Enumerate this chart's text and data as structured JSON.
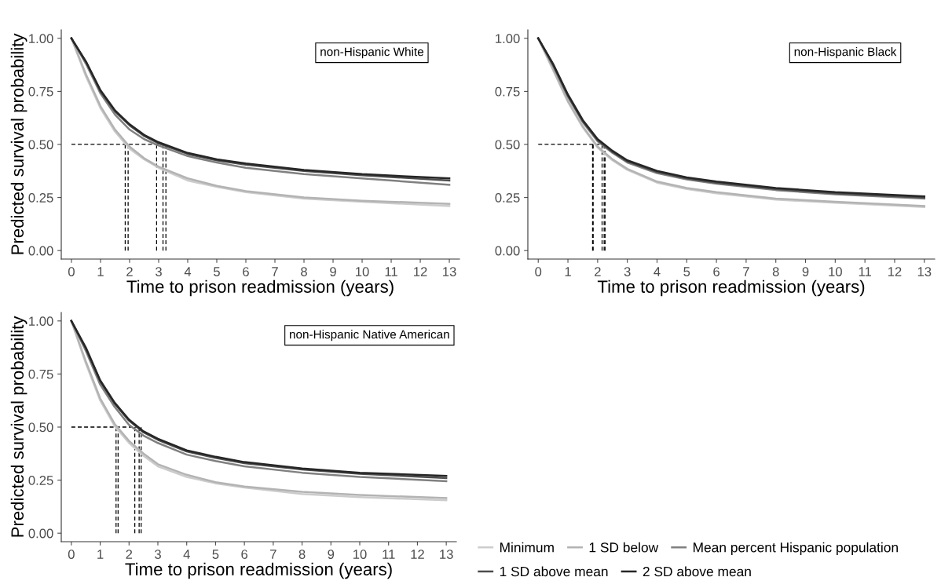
{
  "chart_data": [
    {
      "type": "line",
      "annotations": [
        "non-Hispanic White"
      ],
      "xlabel": "Time to prison readmission (years)",
      "ylabel": "Predicted survival probability",
      "x": [
        0,
        0.5,
        1,
        1.5,
        2,
        2.5,
        3,
        4,
        5,
        6,
        8,
        10,
        13
      ],
      "series": [
        {
          "name": "Minimum",
          "color": "#cccccc",
          "values": [
            1,
            0.82,
            0.67,
            0.56,
            0.48,
            0.43,
            0.39,
            0.33,
            0.3,
            0.275,
            0.245,
            0.23,
            0.21
          ]
        },
        {
          "name": "1 SD below",
          "color": "#b3b3b3",
          "values": [
            1,
            0.83,
            0.68,
            0.57,
            0.49,
            0.435,
            0.395,
            0.34,
            0.305,
            0.28,
            0.25,
            0.235,
            0.22
          ]
        },
        {
          "name": "Mean percent Hispanic population",
          "color": "#808080",
          "values": [
            1,
            0.88,
            0.74,
            0.64,
            0.57,
            0.525,
            0.495,
            0.445,
            0.415,
            0.39,
            0.36,
            0.34,
            0.31
          ]
        },
        {
          "name": "1 SD above mean",
          "color": "#4d4d4d",
          "values": [
            1,
            0.89,
            0.75,
            0.655,
            0.59,
            0.54,
            0.505,
            0.455,
            0.425,
            0.405,
            0.375,
            0.355,
            0.33
          ]
        },
        {
          "name": "2 SD above mean",
          "color": "#262626",
          "values": [
            1,
            0.89,
            0.755,
            0.66,
            0.595,
            0.545,
            0.51,
            0.46,
            0.43,
            0.41,
            0.38,
            0.36,
            0.34
          ]
        }
      ],
      "ref_lines": [
        {
          "axis": "y",
          "value": 0.5,
          "line_style": "dashed"
        },
        {
          "axis": "x",
          "value": 1.85,
          "line_style": "dashed"
        },
        {
          "axis": "x",
          "value": 1.95,
          "line_style": "dashed"
        },
        {
          "axis": "x",
          "value": 2.93,
          "line_style": "dashed"
        },
        {
          "axis": "x",
          "value": 3.15,
          "line_style": "dashed"
        },
        {
          "axis": "x",
          "value": 3.25,
          "line_style": "dashed"
        }
      ],
      "xlim": [
        -0.35,
        13.35
      ],
      "ylim": [
        -0.04,
        1.04
      ],
      "xticks": [
        0,
        1,
        2,
        3,
        4,
        5,
        6,
        7,
        8,
        9,
        10,
        11,
        12,
        13
      ],
      "yticks": [
        {
          "value": 0,
          "label": "0.00"
        },
        {
          "value": 0.25,
          "label": "0.25"
        },
        {
          "value": 0.5,
          "label": "0.50"
        },
        {
          "value": 0.75,
          "label": "0.75"
        },
        {
          "value": 1,
          "label": "1.00"
        }
      ],
      "grid": false,
      "legend": "bottom right"
    },
    {
      "type": "line",
      "annotations": [
        "non-Hispanic Black"
      ],
      "xlabel": "Time to prison readmission (years)",
      "x": [
        0,
        0.5,
        1,
        1.5,
        2,
        2.5,
        3,
        4,
        5,
        6,
        8,
        10,
        13
      ],
      "series": [
        {
          "color": "#cccccc",
          "values": [
            1,
            0.85,
            0.7,
            0.58,
            0.485,
            0.425,
            0.38,
            0.32,
            0.29,
            0.27,
            0.24,
            0.225,
            0.205
          ]
        },
        {
          "color": "#b3b3b3",
          "values": [
            1,
            0.855,
            0.705,
            0.585,
            0.49,
            0.43,
            0.385,
            0.325,
            0.295,
            0.275,
            0.245,
            0.23,
            0.21
          ]
        },
        {
          "color": "#808080",
          "values": [
            1,
            0.87,
            0.725,
            0.605,
            0.515,
            0.46,
            0.415,
            0.365,
            0.335,
            0.315,
            0.285,
            0.265,
            0.245
          ]
        },
        {
          "color": "#4d4d4d",
          "values": [
            1,
            0.875,
            0.73,
            0.61,
            0.52,
            0.465,
            0.42,
            0.37,
            0.34,
            0.32,
            0.29,
            0.27,
            0.25
          ]
        },
        {
          "color": "#262626",
          "values": [
            1,
            0.88,
            0.735,
            0.615,
            0.525,
            0.47,
            0.425,
            0.375,
            0.345,
            0.325,
            0.295,
            0.275,
            0.255
          ]
        }
      ],
      "ref_lines": [
        {
          "axis": "y",
          "value": 0.5,
          "line_style": "dashed"
        },
        {
          "axis": "x",
          "value": 1.83,
          "line_style": "dashed"
        },
        {
          "axis": "x",
          "value": 1.85,
          "line_style": "dashed"
        },
        {
          "axis": "x",
          "value": 2.15,
          "line_style": "dashed"
        },
        {
          "axis": "x",
          "value": 2.22,
          "line_style": "dashed"
        },
        {
          "axis": "x",
          "value": 2.25,
          "line_style": "dashed"
        }
      ],
      "xlim": [
        -0.35,
        13.35
      ],
      "ylim": [
        -0.04,
        1.04
      ],
      "xticks": [
        0,
        1,
        2,
        3,
        4,
        5,
        6,
        7,
        8,
        9,
        10,
        11,
        12,
        13
      ],
      "yticks": [
        {
          "value": 0,
          "label": "0.00"
        },
        {
          "value": 0.25,
          "label": "0.25"
        },
        {
          "value": 0.5,
          "label": "0.50"
        },
        {
          "value": 0.75,
          "label": "0.75"
        },
        {
          "value": 1,
          "label": "1.00"
        }
      ],
      "grid": false,
      "legend": false
    },
    {
      "type": "line",
      "annotations": [
        "non-Hispanic Native American"
      ],
      "xlabel": "Time to prison readmission (years)",
      "ylabel": "Predicted survival probability",
      "x": [
        0,
        0.5,
        1,
        1.5,
        2,
        2.5,
        3,
        4,
        5,
        6,
        8,
        10,
        13
      ],
      "series": [
        {
          "color": "#cccccc",
          "values": [
            1,
            0.8,
            0.625,
            0.505,
            0.425,
            0.365,
            0.315,
            0.265,
            0.235,
            0.215,
            0.185,
            0.17,
            0.155
          ]
        },
        {
          "color": "#b3b3b3",
          "values": [
            1,
            0.81,
            0.635,
            0.515,
            0.435,
            0.375,
            0.325,
            0.275,
            0.24,
            0.22,
            0.195,
            0.18,
            0.165
          ]
        },
        {
          "color": "#808080",
          "values": [
            1,
            0.86,
            0.7,
            0.595,
            0.51,
            0.46,
            0.425,
            0.37,
            0.34,
            0.315,
            0.285,
            0.265,
            0.245
          ]
        },
        {
          "color": "#4d4d4d",
          "values": [
            1,
            0.87,
            0.715,
            0.61,
            0.53,
            0.475,
            0.44,
            0.385,
            0.355,
            0.33,
            0.3,
            0.28,
            0.26
          ]
        },
        {
          "color": "#262626",
          "values": [
            1,
            0.875,
            0.72,
            0.615,
            0.535,
            0.48,
            0.445,
            0.39,
            0.36,
            0.335,
            0.305,
            0.285,
            0.27
          ]
        }
      ],
      "ref_lines": [
        {
          "axis": "y",
          "value": 0.5,
          "line_style": "dashed"
        },
        {
          "axis": "x",
          "value": 1.55,
          "line_style": "dashed"
        },
        {
          "axis": "x",
          "value": 1.62,
          "line_style": "dashed"
        },
        {
          "axis": "x",
          "value": 2.2,
          "line_style": "dashed"
        },
        {
          "axis": "x",
          "value": 2.35,
          "line_style": "dashed"
        },
        {
          "axis": "x",
          "value": 2.42,
          "line_style": "dashed"
        }
      ],
      "xlim": [
        -0.35,
        13.35
      ],
      "ylim": [
        -0.04,
        1.04
      ],
      "xticks": [
        0,
        1,
        2,
        3,
        4,
        5,
        6,
        7,
        8,
        9,
        10,
        11,
        12,
        13
      ],
      "yticks": [
        {
          "value": 0,
          "label": "0.00"
        },
        {
          "value": 0.25,
          "label": "0.25"
        },
        {
          "value": 0.5,
          "label": "0.50"
        },
        {
          "value": 0.75,
          "label": "0.75"
        },
        {
          "value": 1,
          "label": "1.00"
        }
      ],
      "grid": false,
      "legend": false
    }
  ]
}
